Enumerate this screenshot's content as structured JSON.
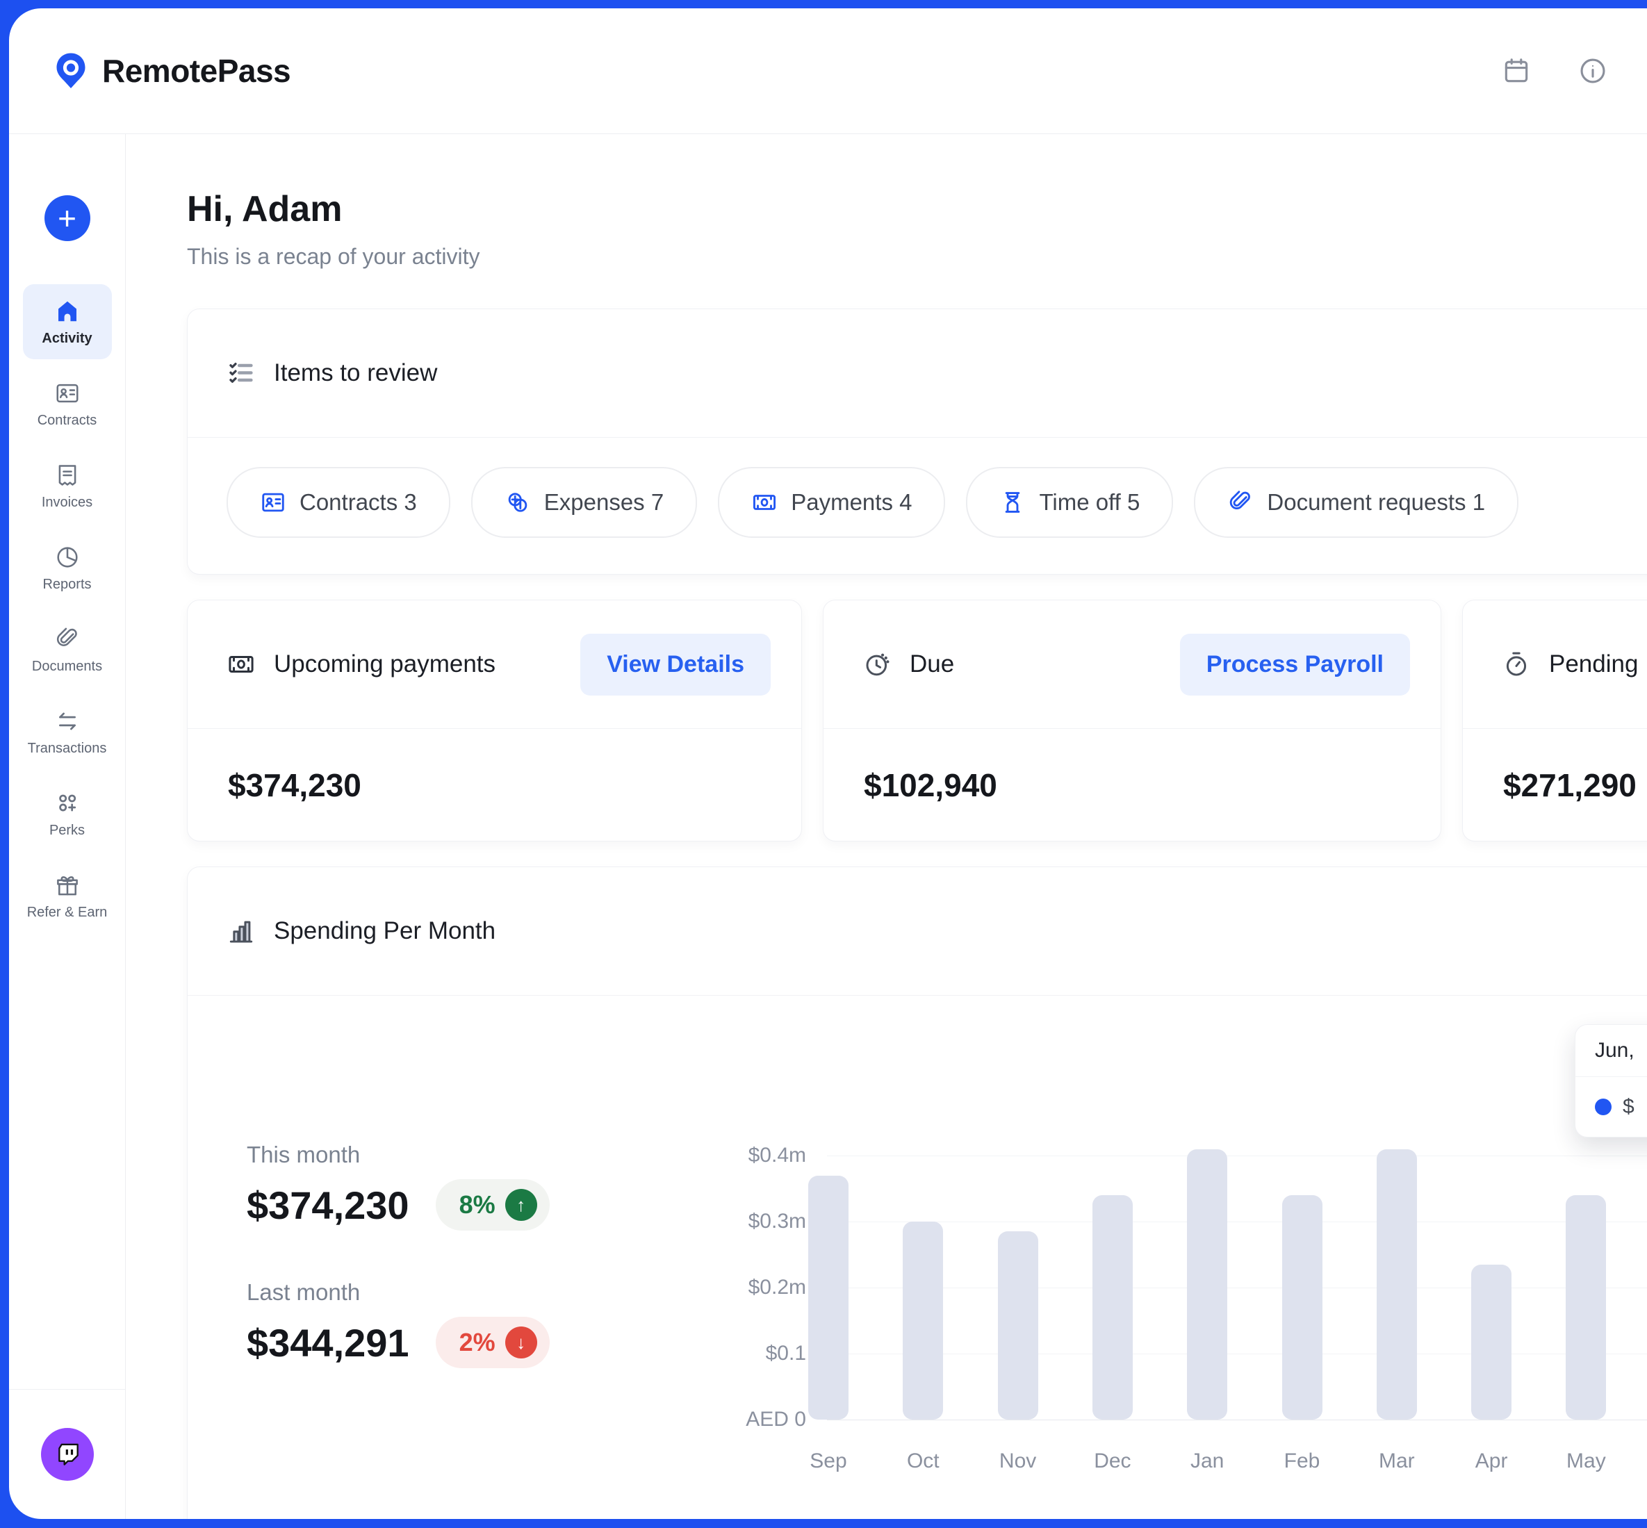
{
  "header": {
    "brand": "RemotePass"
  },
  "sidebar": {
    "add_label": "+",
    "items": [
      {
        "label": "Activity",
        "active": true
      },
      {
        "label": "Contracts"
      },
      {
        "label": "Invoices"
      },
      {
        "label": "Reports"
      },
      {
        "label": "Documents"
      },
      {
        "label": "Transactions"
      },
      {
        "label": "Perks"
      },
      {
        "label": "Refer & Earn"
      }
    ]
  },
  "greeting": {
    "title": "Hi, Adam",
    "subtitle": "This is a recap of your activity"
  },
  "items_to_review": {
    "title": "Items to review",
    "pills": [
      {
        "label": "Contracts",
        "count": "3",
        "icon": "contract-card-icon"
      },
      {
        "label": "Expenses",
        "count": "7",
        "icon": "coins-icon"
      },
      {
        "label": "Payments",
        "count": "4",
        "icon": "banknote-icon"
      },
      {
        "label": "Time off",
        "count": "5",
        "icon": "hourglass-icon"
      },
      {
        "label": "Document requests",
        "count": "1",
        "icon": "paperclip-icon"
      }
    ]
  },
  "stat_cards": [
    {
      "title": "Upcoming payments",
      "action": "View Details",
      "value": "$374,230",
      "icon": "banknote-icon"
    },
    {
      "title": "Due",
      "action": "Process Payroll",
      "value": "$102,940",
      "icon": "clock-icon"
    },
    {
      "title": "Pending",
      "value": "$271,290",
      "icon": "stopwatch-icon"
    }
  ],
  "spending": {
    "title": "Spending Per Month",
    "this_month": {
      "label": "This month",
      "value": "$374,230",
      "change": "8%",
      "direction": "up"
    },
    "last_month": {
      "label": "Last month",
      "value": "$344,291",
      "change": "2%",
      "direction": "down"
    },
    "tooltip": {
      "month": "Jun,",
      "value": "$"
    }
  },
  "chart_data": {
    "type": "bar",
    "title": "Spending Per Month",
    "categories": [
      "Sep",
      "Oct",
      "Nov",
      "Dec",
      "Jan",
      "Feb",
      "Mar",
      "Apr",
      "May"
    ],
    "values": [
      0.37,
      0.3,
      0.285,
      0.34,
      0.41,
      0.34,
      0.41,
      0.235,
      0.34
    ],
    "yticks": [
      {
        "label": "$0.4m",
        "value": 0.4
      },
      {
        "label": "$0.3m",
        "value": 0.3
      },
      {
        "label": "$0.2m",
        "value": 0.2
      },
      {
        "label": "$0.1",
        "value": 0.1
      },
      {
        "label": "AED 0",
        "value": 0
      }
    ],
    "ylim": [
      0,
      0.45
    ],
    "grid": "horizontal",
    "legend": "none",
    "bar_color": "#DEE2EE",
    "xlabel": "",
    "ylabel": ""
  },
  "colors": {
    "accent_blue": "#2156F2",
    "frame_outer": "#1D50F0",
    "frame_inner": "#8FA9F7",
    "bar_fill": "#DEE2EE",
    "positive_green": "#1B7A44",
    "negative_red": "#E2483D",
    "chat_purple": "#9146FF"
  }
}
